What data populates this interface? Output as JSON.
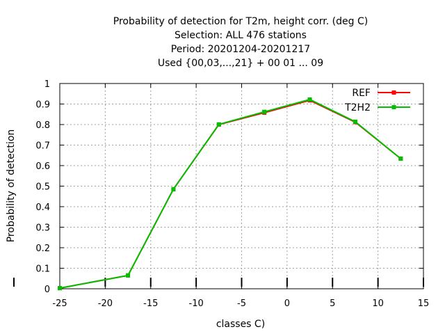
{
  "chart_data": {
    "type": "line",
    "title_lines": [
      "Probability of detection  for T2m, height corr. (deg C)",
      "Selection: ALL    476 stations",
      "Period: 20201204-20201217",
      "Used {00,03,...,21} + 00 01 ... 09"
    ],
    "xlabel": "classes C)",
    "ylabel": "Probability of detection",
    "xlim": [
      -25,
      15
    ],
    "ylim": [
      0,
      1
    ],
    "xticks": [
      "-25",
      "-20",
      "-15",
      "-10",
      "-5",
      "0",
      "5",
      "10",
      "15"
    ],
    "yticks": [
      "0",
      "0.1",
      "0.2",
      "0.3",
      "0.4",
      "0.5",
      "0.6",
      "0.7",
      "0.8",
      "0.9",
      "1"
    ],
    "grid": true,
    "legend_position": "top-right",
    "series": [
      {
        "name": "REF",
        "color": "#ff0000",
        "x": [
          -25,
          -17.5,
          -12.5,
          -7.5,
          -2.5,
          2.5,
          7.5,
          12.5
        ],
        "y": [
          0.003,
          0.065,
          0.485,
          0.8,
          0.858,
          0.918,
          0.812,
          0.634
        ]
      },
      {
        "name": "T2H2",
        "color": "#00c000",
        "x": [
          -25,
          -17.5,
          -12.5,
          -7.5,
          -2.5,
          2.5,
          7.5,
          12.5
        ],
        "y": [
          0.003,
          0.065,
          0.485,
          0.801,
          0.862,
          0.922,
          0.814,
          0.634
        ]
      }
    ]
  }
}
